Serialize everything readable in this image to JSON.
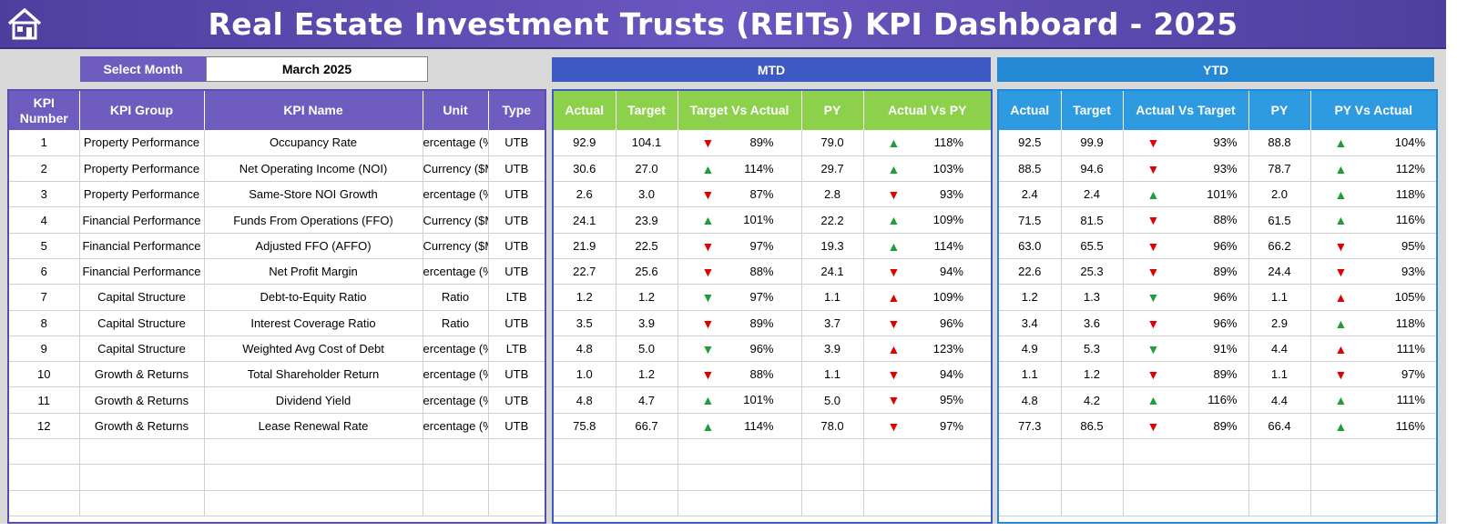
{
  "header": {
    "title": "Real Estate Investment Trusts (REITs) KPI Dashboard - 2025",
    "home_icon": "home-icon",
    "gradient": [
      "#4e3f9e",
      "#6a56c0"
    ]
  },
  "month_selector": {
    "label": "Select Month",
    "value": "March 2025"
  },
  "sections": {
    "mtd": "MTD",
    "ytd": "YTD"
  },
  "kpi_headers": [
    "KPI Number",
    "KPI Group",
    "KPI Name",
    "Unit",
    "Type"
  ],
  "mtd_headers": [
    "Actual",
    "Target",
    "Target Vs Actual",
    "PY",
    "Actual Vs PY"
  ],
  "ytd_headers": [
    "Actual",
    "Target",
    "Actual Vs Target",
    "PY",
    "PY Vs Actual"
  ],
  "colors": {
    "up": "#1f9d3a",
    "down": "#e00000",
    "kpi_header": "#6f5cbf",
    "mtd_header": "#8dd04b",
    "ytd_header": "#2e9ae0"
  },
  "rows": [
    {
      "num": "1",
      "group": "Property Performance",
      "name": "Occupancy Rate",
      "unit": "ercentage (%",
      "type": "UTB",
      "mtd": {
        "actual": "92.9",
        "target": "104.1",
        "tva_dir": "down",
        "tva": "89%",
        "py": "79.0",
        "avp_dir": "up",
        "avp": "118%"
      },
      "ytd": {
        "actual": "92.5",
        "target": "99.9",
        "avt_dir": "down",
        "avt": "93%",
        "py": "88.8",
        "pva_dir": "up",
        "pva": "104%"
      }
    },
    {
      "num": "2",
      "group": "Property Performance",
      "name": "Net Operating Income (NOI)",
      "unit": "Currency ($M",
      "type": "UTB",
      "mtd": {
        "actual": "30.6",
        "target": "27.0",
        "tva_dir": "up",
        "tva": "114%",
        "py": "29.7",
        "avp_dir": "up",
        "avp": "103%"
      },
      "ytd": {
        "actual": "88.5",
        "target": "94.6",
        "avt_dir": "down",
        "avt": "93%",
        "py": "78.7",
        "pva_dir": "up",
        "pva": "112%"
      }
    },
    {
      "num": "3",
      "group": "Property Performance",
      "name": "Same-Store NOI Growth",
      "unit": "ercentage (%",
      "type": "UTB",
      "mtd": {
        "actual": "2.6",
        "target": "3.0",
        "tva_dir": "down",
        "tva": "87%",
        "py": "2.8",
        "avp_dir": "down",
        "avp": "93%"
      },
      "ytd": {
        "actual": "2.4",
        "target": "2.4",
        "avt_dir": "up",
        "avt": "101%",
        "py": "2.0",
        "pva_dir": "up",
        "pva": "118%"
      }
    },
    {
      "num": "4",
      "group": "Financial Performance",
      "name": "Funds From Operations (FFO)",
      "unit": "Currency ($M",
      "type": "UTB",
      "mtd": {
        "actual": "24.1",
        "target": "23.9",
        "tva_dir": "up",
        "tva": "101%",
        "py": "22.2",
        "avp_dir": "up",
        "avp": "109%"
      },
      "ytd": {
        "actual": "71.5",
        "target": "81.5",
        "avt_dir": "down",
        "avt": "88%",
        "py": "61.5",
        "pva_dir": "up",
        "pva": "116%"
      }
    },
    {
      "num": "5",
      "group": "Financial Performance",
      "name": "Adjusted FFO (AFFO)",
      "unit": "Currency ($M",
      "type": "UTB",
      "mtd": {
        "actual": "21.9",
        "target": "22.5",
        "tva_dir": "down",
        "tva": "97%",
        "py": "19.3",
        "avp_dir": "up",
        "avp": "114%"
      },
      "ytd": {
        "actual": "63.0",
        "target": "65.5",
        "avt_dir": "down",
        "avt": "96%",
        "py": "66.2",
        "pva_dir": "down",
        "pva": "95%"
      }
    },
    {
      "num": "6",
      "group": "Financial Performance",
      "name": "Net Profit Margin",
      "unit": "ercentage (%",
      "type": "UTB",
      "mtd": {
        "actual": "22.7",
        "target": "25.6",
        "tva_dir": "down",
        "tva": "88%",
        "py": "24.1",
        "avp_dir": "down",
        "avp": "94%"
      },
      "ytd": {
        "actual": "22.6",
        "target": "25.3",
        "avt_dir": "down",
        "avt": "89%",
        "py": "24.4",
        "pva_dir": "down",
        "pva": "93%"
      }
    },
    {
      "num": "7",
      "group": "Capital Structure",
      "name": "Debt-to-Equity Ratio",
      "unit": "Ratio",
      "type": "LTB",
      "mtd": {
        "actual": "1.2",
        "target": "1.2",
        "tva_dir": "green-down",
        "tva": "97%",
        "py": "1.1",
        "avp_dir": "red-up",
        "avp": "109%"
      },
      "ytd": {
        "actual": "1.2",
        "target": "1.3",
        "avt_dir": "green-down",
        "avt": "96%",
        "py": "1.1",
        "pva_dir": "red-up",
        "pva": "105%"
      }
    },
    {
      "num": "8",
      "group": "Capital Structure",
      "name": "Interest Coverage Ratio",
      "unit": "Ratio",
      "type": "UTB",
      "mtd": {
        "actual": "3.5",
        "target": "3.9",
        "tva_dir": "down",
        "tva": "89%",
        "py": "3.7",
        "avp_dir": "down",
        "avp": "96%"
      },
      "ytd": {
        "actual": "3.4",
        "target": "3.6",
        "avt_dir": "down",
        "avt": "96%",
        "py": "2.9",
        "pva_dir": "up",
        "pva": "118%"
      }
    },
    {
      "num": "9",
      "group": "Capital Structure",
      "name": "Weighted Avg Cost of Debt",
      "unit": "ercentage (%",
      "type": "LTB",
      "mtd": {
        "actual": "4.8",
        "target": "5.0",
        "tva_dir": "green-down",
        "tva": "96%",
        "py": "3.9",
        "avp_dir": "red-up",
        "avp": "123%"
      },
      "ytd": {
        "actual": "4.9",
        "target": "5.3",
        "avt_dir": "green-down",
        "avt": "91%",
        "py": "4.4",
        "pva_dir": "red-up",
        "pva": "111%"
      }
    },
    {
      "num": "10",
      "group": "Growth & Returns",
      "name": "Total Shareholder Return",
      "unit": "ercentage (%",
      "type": "UTB",
      "mtd": {
        "actual": "1.0",
        "target": "1.2",
        "tva_dir": "down",
        "tva": "88%",
        "py": "1.1",
        "avp_dir": "down",
        "avp": "94%"
      },
      "ytd": {
        "actual": "1.1",
        "target": "1.2",
        "avt_dir": "down",
        "avt": "89%",
        "py": "1.1",
        "pva_dir": "down",
        "pva": "97%"
      }
    },
    {
      "num": "11",
      "group": "Growth & Returns",
      "name": "Dividend Yield",
      "unit": "ercentage (%",
      "type": "UTB",
      "mtd": {
        "actual": "4.8",
        "target": "4.7",
        "tva_dir": "up",
        "tva": "101%",
        "py": "5.0",
        "avp_dir": "down",
        "avp": "95%"
      },
      "ytd": {
        "actual": "4.8",
        "target": "4.2",
        "avt_dir": "up",
        "avt": "116%",
        "py": "4.4",
        "pva_dir": "up",
        "pva": "111%"
      }
    },
    {
      "num": "12",
      "group": "Growth & Returns",
      "name": "Lease Renewal Rate",
      "unit": "ercentage (%",
      "type": "UTB",
      "mtd": {
        "actual": "75.8",
        "target": "66.7",
        "tva_dir": "up",
        "tva": "114%",
        "py": "78.0",
        "avp_dir": "down",
        "avp": "97%"
      },
      "ytd": {
        "actual": "77.3",
        "target": "86.5",
        "avt_dir": "down",
        "avt": "89%",
        "py": "66.4",
        "pva_dir": "up",
        "pva": "116%"
      }
    }
  ],
  "empty_rows": 3
}
